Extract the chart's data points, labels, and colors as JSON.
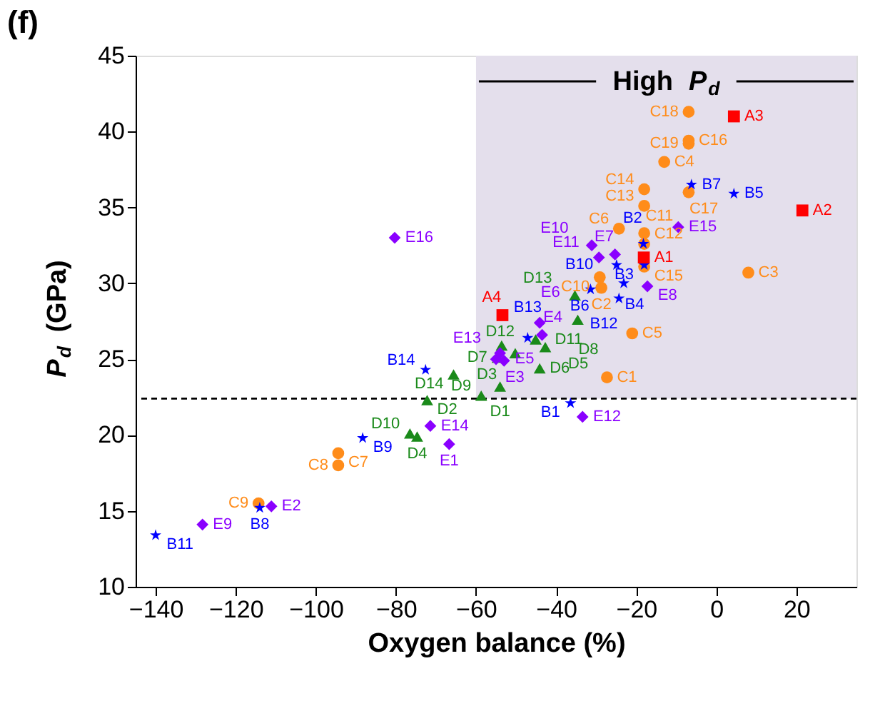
{
  "chart_data": {
    "type": "scatter",
    "title": "(f)",
    "xlabel": "Oxygen balance (%)",
    "ylabel": "P$_{d}$ (GPa)",
    "xlim": [
      -145,
      35
    ],
    "xticks": [
      -140,
      -120,
      -100,
      -80,
      -60,
      -40,
      -20,
      0,
      20
    ],
    "ylim": [
      10,
      45
    ],
    "yticks": [
      10,
      15,
      20,
      25,
      30,
      35,
      40,
      45
    ],
    "grid": false,
    "ref_lines": [
      {
        "axis": "y",
        "value": 22.4,
        "line_style": "dashed",
        "color": "#000000"
      }
    ],
    "bands": [
      {
        "axis": "x",
        "from": -60,
        "to": 35,
        "label": "High P$_{d}$",
        "color": "#e4dfec"
      }
    ],
    "series": [
      {
        "color": "#ff8c1a",
        "marker": "circle",
        "x": [
          -27.3,
          -28.7,
          8.0,
          -13.0,
          -21.0,
          -24.3,
          -94.4,
          -94.4,
          -114.3,
          -29.1,
          -18.0,
          -18.0,
          -18.0,
          -18.0,
          -18.0,
          -6.9,
          -6.9,
          -6.9,
          -6.9
        ],
        "values": [
          23.8,
          29.7,
          30.7,
          38.0,
          26.7,
          33.6,
          18.8,
          18.0,
          15.5,
          30.4,
          33.3,
          32.6,
          35.1,
          36.2,
          31.1,
          39.4,
          36.0,
          41.3,
          39.2
        ],
        "value_labels": [
          "C1",
          "C2",
          "C3",
          "C4",
          "C5",
          "C6",
          "C7",
          "C8",
          "C9",
          "C10",
          "C11",
          "C12",
          "C13",
          "C14",
          "C15",
          "C16",
          "C17",
          "C18",
          "C19"
        ]
      },
      {
        "color": "#1a8a1a",
        "marker": "triangle",
        "x": [
          -54.0,
          -72.2,
          -54.6,
          -74.7,
          -42.7,
          -44.1,
          -53.6,
          -34.6,
          -58.7,
          -76.5,
          -45.1,
          -50.2,
          -35.3,
          -65.6
        ],
        "values": [
          23.2,
          22.3,
          25.1,
          19.9,
          25.8,
          24.4,
          25.9,
          27.6,
          22.6,
          20.1,
          26.3,
          25.4,
          29.2,
          24.0
        ],
        "value_labels": [
          "D1",
          "D2",
          "D3",
          "D4",
          "D5",
          "D6",
          "D7",
          "D8",
          "D9",
          "D10",
          "D11",
          "D12",
          "D13",
          "D14"
        ]
      },
      {
        "color": "#8a00ff",
        "marker": "diamond",
        "x": [
          -66.7,
          -111.1,
          -53.0,
          -43.5,
          -55.0,
          -44.1,
          -25.3,
          -17.2,
          -128.3,
          -31.1,
          -29.3,
          -33.4,
          -54.0,
          -71.4,
          -9.5,
          -80.3
        ],
        "values": [
          19.4,
          15.3,
          24.9,
          26.6,
          25.0,
          27.4,
          31.9,
          29.8,
          14.1,
          32.5,
          31.7,
          21.2,
          25.4,
          20.6,
          33.7,
          33.0
        ],
        "value_labels": [
          "E1",
          "E2",
          "E3",
          "E4",
          "E5",
          "E6",
          "E7",
          "E8",
          "E9",
          "E10",
          "E11",
          "E12",
          "E13",
          "E14",
          "E15",
          "E16"
        ]
      },
      {
        "color": "#0000ff",
        "marker": "star",
        "x": [
          -36.4,
          -18.2,
          -18.0,
          -23.1,
          4.4,
          -31.4,
          -6.2,
          -114,
          -88.3,
          -24.9,
          -140,
          -24.3,
          -47.1,
          -72.6
        ],
        "values": [
          22.1,
          32.6,
          31.2,
          30.0,
          35.9,
          29.6,
          36.5,
          15.2,
          19.8,
          31.2,
          13.4,
          29.0,
          26.4,
          24.3
        ],
        "value_labels": [
          "B1",
          "B2",
          "B3",
          "B4",
          "B5",
          "B6",
          "B7",
          "B8",
          "B9",
          "B10",
          "B11",
          "B12",
          "B13",
          "B14"
        ]
      },
      {
        "color": "#ff0000",
        "marker": "square",
        "x": [
          -18.1,
          21.5,
          4.4,
          -53.4
        ],
        "values": [
          31.7,
          34.8,
          41.0,
          27.9
        ],
        "value_labels": [
          "A1",
          "A2",
          "A3",
          "A4"
        ]
      }
    ]
  }
}
